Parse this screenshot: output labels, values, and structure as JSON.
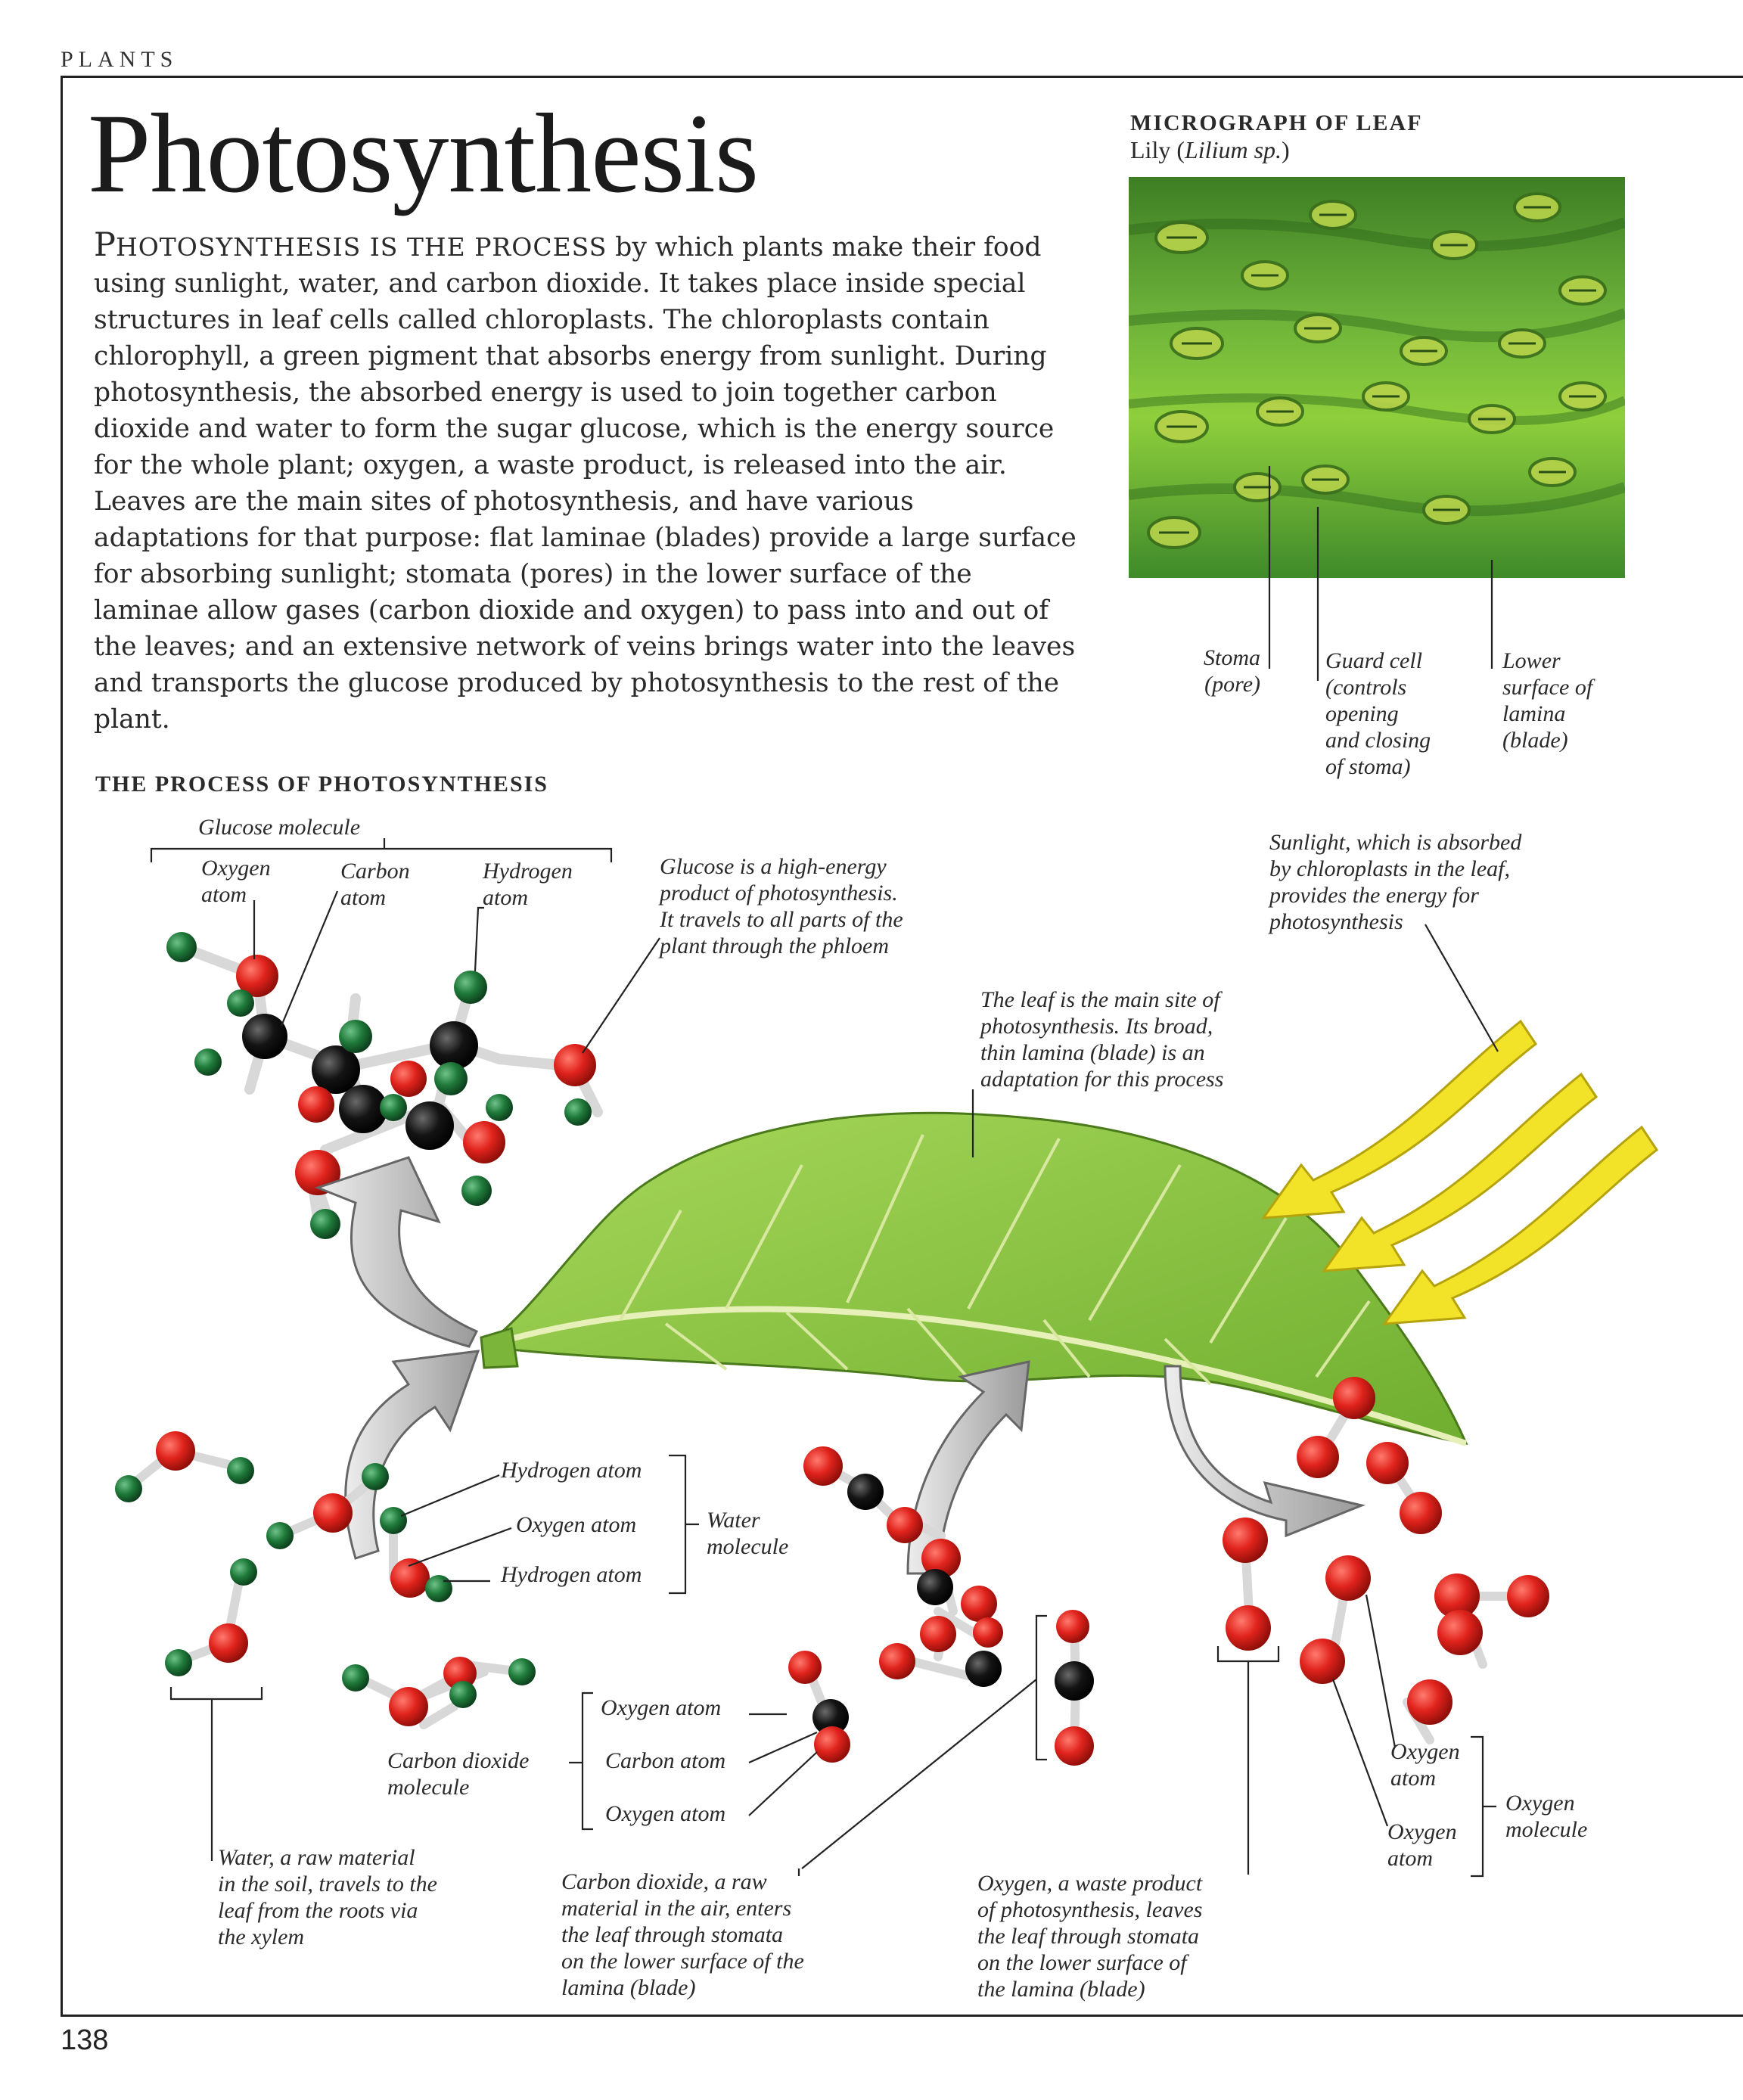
{
  "header": {
    "section": "PLANTS",
    "page_number": "138"
  },
  "title": "Photosynthesis",
  "intro": {
    "lead": "P",
    "lead_rest": "HOTOSYNTHESIS IS THE PROCESS",
    "body": " by which plants make their food using sunlight, water, and carbon dioxide. It takes place inside special structures in leaf cells called chloroplasts. The chloroplasts contain chlorophyll, a green pigment that absorbs energy from sunlight. During photosynthesis, the absorbed energy is used to join together carbon dioxide and water to form the sugar glucose, which is the energy source for the whole plant; oxygen, a waste product, is released into the air. Leaves are the main sites of photosynthesis, and have various adaptations for that purpose: flat laminae (blades) provide a large surface for absorbing sunlight; stomata (pores) in the lower surface of the laminae allow gases (carbon dioxide and oxygen) to pass into and out of the leaves; and an extensive network of veins brings water into the leaves and transports the glucose produced by photosynthesis to the rest of the plant."
  },
  "micrograph": {
    "heading": "MICROGRAPH OF LEAF",
    "subtitle_prefix": "Lily (",
    "subtitle_species": "Lilium sp.",
    "subtitle_suffix": ")",
    "labels": {
      "stoma": "Stoma\n(pore)",
      "guard_cell": "Guard cell\n(controls\nopening\nand closing\nof stoma)",
      "lower_surface": "Lower\nsurface of\nlamina\n(blade)"
    }
  },
  "process": {
    "heading": "THE PROCESS OF PHOTOSYNTHESIS",
    "labels": {
      "glucose_molecule": "Glucose molecule",
      "glucose_oxygen": "Oxygen\natom",
      "glucose_carbon": "Carbon\natom",
      "glucose_hydrogen": "Hydrogen\natom",
      "glucose_desc": "Glucose is a high-energy\nproduct of photosynthesis.\nIt travels to all parts of the\nplant through the phloem",
      "sunlight_desc": "Sunlight, which is absorbed\nby chloroplasts in the leaf,\nprovides the energy for\nphotosynthesis",
      "leaf_desc": "The leaf is the main site of\nphotosynthesis. Its broad,\nthin lamina (blade) is an\nadaptation for this process",
      "water_hydrogen_1": "Hydrogen atom",
      "water_oxygen": "Oxygen atom",
      "water_hydrogen_2": "Hydrogen atom",
      "water_molecule": "Water\nmolecule",
      "water_desc": "Water, a raw material\nin the soil, travels to the\nleaf from the roots via\nthe xylem",
      "co2_molecule": "Carbon dioxide\nmolecule",
      "co2_oxygen_1": "Oxygen atom",
      "co2_carbon": "Carbon atom",
      "co2_oxygen_2": "Oxygen atom",
      "co2_desc": "Carbon dioxide, a raw\nmaterial in the air, enters\nthe leaf through stomata\non the lower surface of the\nlamina (blade)",
      "oxygen_desc": "Oxygen, a waste product\nof photosynthesis, leaves\nthe leaf through stomata\non the lower surface of\nthe lamina (blade)",
      "o2_atom_1": "Oxygen\natom",
      "o2_atom_2": "Oxygen\natom",
      "o2_molecule": "Oxygen\nmolecule"
    }
  },
  "colors": {
    "oxygen_atom": "#e0231c",
    "carbon_atom": "#141414",
    "hydrogen_atom": "#1f7a3a",
    "bond": "#d8d8d8",
    "leaf": "#8ec63f",
    "sunlight_arrow": "#f2e228",
    "flow_arrow": "#cfcfcf",
    "micrograph_green": "#5aa02c"
  }
}
